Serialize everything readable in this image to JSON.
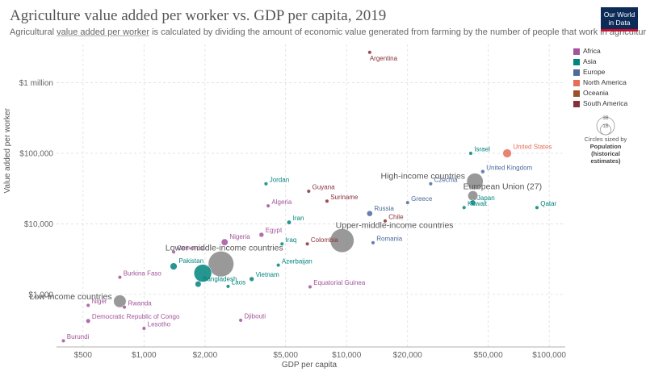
{
  "header": {
    "title": "Agriculture value added per worker vs. GDP per capita, 2019",
    "subtitle_pre": "Agricultural ",
    "subtitle_link": "value added per worker",
    "subtitle_post": " is calculated by dividing the amount of economic value generated from farming by the number of people that work in agriculture.",
    "logo_line1": "Our World",
    "logo_line2": "in Data"
  },
  "legend": {
    "items": [
      {
        "label": "Africa",
        "color": "#a2559c"
      },
      {
        "label": "Asia",
        "color": "#00847e"
      },
      {
        "label": "Europe",
        "color": "#4c6a9c"
      },
      {
        "label": "North America",
        "color": "#e56e5a"
      },
      {
        "label": "Oceania",
        "color": "#9a5129"
      },
      {
        "label": "South America",
        "color": "#883039"
      }
    ],
    "size_values": [
      "3B",
      "1B"
    ],
    "size_caption": "Circles sized by",
    "size_measure": "Population",
    "size_measure_note": "(historical estimates)"
  },
  "chart_data": {
    "type": "scatter",
    "title": "Agriculture value added per worker vs. GDP per capita, 2019",
    "xlabel": "GDP per capita",
    "ylabel": "Value added per worker",
    "x_scale": "log",
    "y_scale": "log",
    "xlim": [
      370,
      120000
    ],
    "ylim": [
      180,
      3500000
    ],
    "x_ticks": [
      500,
      1000,
      2000,
      5000,
      10000,
      20000,
      50000,
      100000
    ],
    "x_tick_labels": [
      "$500",
      "$1,000",
      "$2,000",
      "$5,000",
      "$10,000",
      "$20,000",
      "$50,000",
      "$100,000"
    ],
    "y_ticks": [
      1000,
      10000,
      100000,
      1000000
    ],
    "y_tick_labels": [
      "$1,000",
      "$10,000",
      "$100,000",
      "$1 million"
    ],
    "grid": true,
    "legend_position": "right",
    "points": [
      {
        "label": "Argentina",
        "region": "South America",
        "x": 13000,
        "y": 2700000,
        "pop": 0.045,
        "show_label": true
      },
      {
        "label": "Israel",
        "region": "Asia",
        "x": 41000,
        "y": 100000,
        "pop": 0.009,
        "show_label": true
      },
      {
        "label": "United States",
        "region": "North America",
        "x": 62000,
        "y": 100000,
        "pop": 0.33,
        "show_label": true
      },
      {
        "label": "United Kingdom",
        "region": "Europe",
        "x": 47000,
        "y": 55000,
        "pop": 0.067,
        "show_label": true
      },
      {
        "label": "High-income countries",
        "region": "Aggregate",
        "x": 43000,
        "y": 40000,
        "pop": 1.2,
        "show_label": true
      },
      {
        "label": "European Union (27)",
        "region": "Aggregate",
        "x": 42000,
        "y": 25000,
        "pop": 0.45,
        "show_label": true
      },
      {
        "label": "Jordan",
        "region": "Asia",
        "x": 4000,
        "y": 37000,
        "pop": 0.01,
        "show_label": true
      },
      {
        "label": "Guyana",
        "region": "South America",
        "x": 6500,
        "y": 29000,
        "pop": 0.0008,
        "show_label": true
      },
      {
        "label": "Suriname",
        "region": "South America",
        "x": 8000,
        "y": 21000,
        "pop": 0.0006,
        "show_label": true
      },
      {
        "label": "Algeria",
        "region": "Africa",
        "x": 4100,
        "y": 18000,
        "pop": 0.043,
        "show_label": true
      },
      {
        "label": "Czechia",
        "region": "Europe",
        "x": 26000,
        "y": 37000,
        "pop": 0.011,
        "show_label": true
      },
      {
        "label": "Greece",
        "region": "Europe",
        "x": 20000,
        "y": 20000,
        "pop": 0.01,
        "show_label": true
      },
      {
        "label": "Japan",
        "region": "Asia",
        "x": 42000,
        "y": 20000,
        "pop": 0.126,
        "show_label": true
      },
      {
        "label": "Kuwait",
        "region": "Asia",
        "x": 38000,
        "y": 17000,
        "pop": 0.004,
        "show_label": true
      },
      {
        "label": "Qatar",
        "region": "Asia",
        "x": 87000,
        "y": 17000,
        "pop": 0.003,
        "show_label": true
      },
      {
        "label": "Russia",
        "region": "Europe",
        "x": 13000,
        "y": 14000,
        "pop": 0.145,
        "show_label": true
      },
      {
        "label": "Chile",
        "region": "South America",
        "x": 15500,
        "y": 11000,
        "pop": 0.019,
        "show_label": true
      },
      {
        "label": "Iran",
        "region": "Asia",
        "x": 5200,
        "y": 10500,
        "pop": 0.083,
        "show_label": true
      },
      {
        "label": "Egypt",
        "region": "Africa",
        "x": 3800,
        "y": 7000,
        "pop": 0.1,
        "show_label": true
      },
      {
        "label": "Nigeria",
        "region": "Africa",
        "x": 2500,
        "y": 5500,
        "pop": 0.2,
        "show_label": true
      },
      {
        "label": "Iraq",
        "region": "Asia",
        "x": 4800,
        "y": 5200,
        "pop": 0.039,
        "show_label": true
      },
      {
        "label": "Colombia",
        "region": "South America",
        "x": 6400,
        "y": 5200,
        "pop": 0.05,
        "show_label": true
      },
      {
        "label": "Romania",
        "region": "Europe",
        "x": 13500,
        "y": 5400,
        "pop": 0.019,
        "show_label": true
      },
      {
        "label": "Upper-middle-income countries",
        "region": "Aggregate",
        "x": 9500,
        "y": 5800,
        "pop": 2.5,
        "show_label": true
      },
      {
        "label": "Comoros",
        "region": "Africa",
        "x": 1400,
        "y": 4000,
        "pop": 0.0009,
        "show_label": true
      },
      {
        "label": "Lower-middle-income countries",
        "region": "Aggregate",
        "x": 2400,
        "y": 2700,
        "pop": 2.9,
        "show_label": true
      },
      {
        "label": "Pakistan",
        "region": "Asia",
        "x": 1400,
        "y": 2500,
        "pop": 0.217,
        "show_label": true
      },
      {
        "label": "India",
        "region": "Asia",
        "x": 1950,
        "y": 2000,
        "pop": 1.38,
        "show_label": false
      },
      {
        "label": "Azerbaijan",
        "region": "Asia",
        "x": 4600,
        "y": 2600,
        "pop": 0.01,
        "show_label": true
      },
      {
        "label": "Vietnam",
        "region": "Asia",
        "x": 3400,
        "y": 1650,
        "pop": 0.097,
        "show_label": true
      },
      {
        "label": "Burkina Faso",
        "region": "Africa",
        "x": 760,
        "y": 1750,
        "pop": 0.021,
        "show_label": true
      },
      {
        "label": "Bangladesh",
        "region": "Asia",
        "x": 1850,
        "y": 1400,
        "pop": 0.165,
        "show_label": true
      },
      {
        "label": "Laos",
        "region": "Asia",
        "x": 2600,
        "y": 1300,
        "pop": 0.007,
        "show_label": true
      },
      {
        "label": "Equatorial Guinea",
        "region": "Africa",
        "x": 6600,
        "y": 1280,
        "pop": 0.0014,
        "show_label": true
      },
      {
        "label": "Low-income countries",
        "region": "Aggregate",
        "x": 760,
        "y": 800,
        "pop": 0.7,
        "show_label": true
      },
      {
        "label": "Niger",
        "region": "Africa",
        "x": 530,
        "y": 700,
        "pop": 0.024,
        "show_label": true
      },
      {
        "label": "Rwanda",
        "region": "Africa",
        "x": 800,
        "y": 660,
        "pop": 0.013,
        "show_label": true
      },
      {
        "label": "Democratic Republic of Congo",
        "region": "Africa",
        "x": 530,
        "y": 420,
        "pop": 0.089,
        "show_label": true
      },
      {
        "label": "Djibouti",
        "region": "Africa",
        "x": 3000,
        "y": 430,
        "pop": 0.001,
        "show_label": true
      },
      {
        "label": "Lesotho",
        "region": "Africa",
        "x": 1000,
        "y": 330,
        "pop": 0.002,
        "show_label": true
      },
      {
        "label": "Burundi",
        "region": "Africa",
        "x": 400,
        "y": 220,
        "pop": 0.012,
        "show_label": true
      }
    ]
  }
}
